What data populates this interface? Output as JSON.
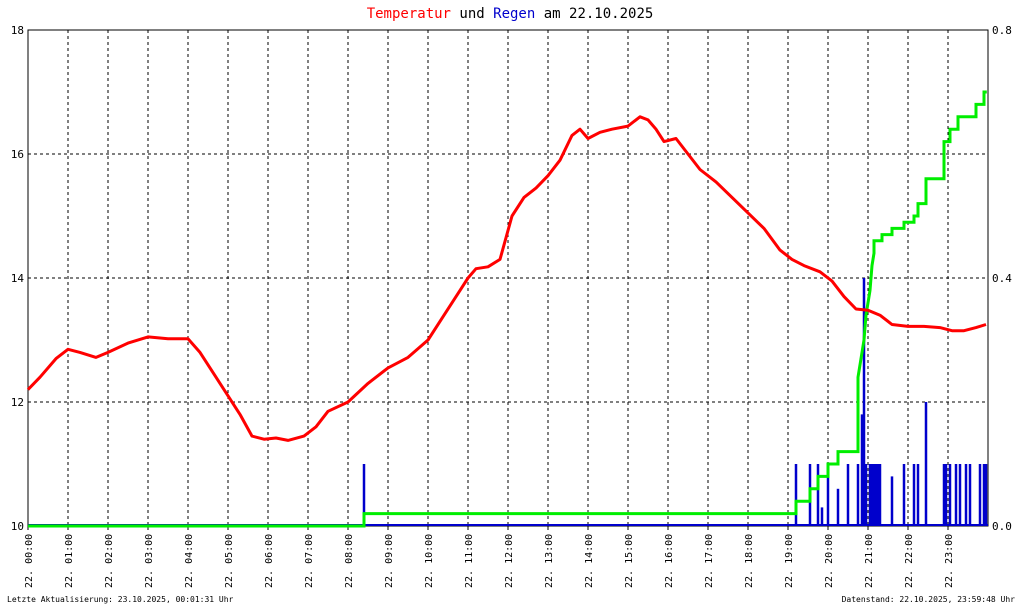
{
  "title": {
    "part1": "Temperatur",
    "part2": " und ",
    "part3": "Regen",
    "part4": " am 22.10.2025",
    "colors": {
      "part1": "#ff0000",
      "part2": "#000000",
      "part3": "#0000cc",
      "part4": "#000000"
    }
  },
  "footer": {
    "left": "Letzte Aktualisierung: 23.10.2025, 00:01:31 Uhr",
    "right": "Datenstand: 22.10.2025, 23:59:48 Uhr"
  },
  "chart_data": {
    "type": "line",
    "title": "Temperatur und Regen am 22.10.2025",
    "x_tick_labels": [
      "22. 00:00",
      "22. 01:00",
      "22. 02:00",
      "22. 03:00",
      "22. 04:00",
      "22. 05:00",
      "22. 06:00",
      "22. 07:00",
      "22. 08:00",
      "22. 09:00",
      "22. 10:00",
      "22. 11:00",
      "22. 12:00",
      "22. 13:00",
      "22. 14:00",
      "22. 15:00",
      "22. 16:00",
      "22. 17:00",
      "22. 18:00",
      "22. 19:00",
      "22. 20:00",
      "22. 21:00",
      "22. 22:00",
      "22. 23:00"
    ],
    "xlim_hours": [
      0,
      24
    ],
    "y_left": {
      "ticks": [
        "10",
        "12",
        "14",
        "16",
        "18"
      ],
      "ylim": [
        10,
        18
      ]
    },
    "y_right": {
      "ticks": [
        "0.0",
        "0.4",
        "0.8"
      ],
      "ylim": [
        0,
        0.8
      ]
    },
    "grid": true,
    "colors": {
      "temperature": "#ff0000",
      "rain": "#0000cc",
      "rain_cumulative": "#00ee00",
      "axis": "#000000",
      "grid": "#000000"
    },
    "series": [
      {
        "axis": "left",
        "style": "line",
        "hours": [
          0,
          0.3,
          0.7,
          1.0,
          1.3,
          1.7,
          2.0,
          2.5,
          3.0,
          3.5,
          4.0,
          4.3,
          4.7,
          5.0,
          5.3,
          5.6,
          5.9,
          6.2,
          6.5,
          6.9,
          7.2,
          7.5,
          8.0,
          8.5,
          9.0,
          9.5,
          10.0,
          10.4,
          10.8,
          11.0,
          11.2,
          11.5,
          11.8,
          12.1,
          12.4,
          12.7,
          13.0,
          13.3,
          13.6,
          13.8,
          14.0,
          14.3,
          14.6,
          15.0,
          15.3,
          15.5,
          15.7,
          15.9,
          16.2,
          16.5,
          16.8,
          17.2,
          17.6,
          18.0,
          18.4,
          18.8,
          19.1,
          19.4,
          19.8,
          20.1,
          20.4,
          20.7,
          21.0,
          21.3,
          21.6,
          22.0,
          22.4,
          22.8,
          23.1,
          23.4,
          23.7,
          23.95
        ],
        "values": [
          12.2,
          12.4,
          12.7,
          12.85,
          12.8,
          12.72,
          12.8,
          12.95,
          13.05,
          13.02,
          13.02,
          12.8,
          12.4,
          12.1,
          11.8,
          11.45,
          11.4,
          11.42,
          11.38,
          11.45,
          11.6,
          11.85,
          12.0,
          12.3,
          12.55,
          12.72,
          13.0,
          13.4,
          13.8,
          14.0,
          14.15,
          14.18,
          14.3,
          15.0,
          15.3,
          15.45,
          15.65,
          15.9,
          16.3,
          16.4,
          16.25,
          16.35,
          16.4,
          16.45,
          16.6,
          16.55,
          16.4,
          16.2,
          16.25,
          16.0,
          15.75,
          15.55,
          15.3,
          15.05,
          14.8,
          14.45,
          14.3,
          14.2,
          14.1,
          13.95,
          13.7,
          13.5,
          13.48,
          13.4,
          13.25,
          13.22,
          13.22,
          13.2,
          13.15,
          13.15,
          13.2,
          13.25
        ]
      },
      {
        "axis": "right",
        "style": "step",
        "hours": [
          0,
          8.4,
          8.4,
          19.2,
          19.2,
          19.55,
          19.55,
          19.75,
          19.75,
          20.0,
          20.0,
          20.25,
          20.25,
          20.75,
          20.75,
          20.9,
          20.95,
          21.05,
          21.1,
          21.15,
          21.15,
          21.35,
          21.35,
          21.6,
          21.6,
          21.9,
          21.9,
          22.15,
          22.15,
          22.25,
          22.25,
          22.45,
          22.45,
          22.9,
          22.9,
          23.05,
          23.05,
          23.25,
          23.25,
          23.5,
          23.5,
          23.7,
          23.7,
          23.9,
          23.9,
          23.97
        ],
        "values": [
          0.0,
          0.0,
          0.02,
          0.02,
          0.04,
          0.04,
          0.06,
          0.06,
          0.08,
          0.08,
          0.1,
          0.1,
          0.12,
          0.12,
          0.24,
          0.3,
          0.34,
          0.38,
          0.42,
          0.44,
          0.46,
          0.46,
          0.47,
          0.47,
          0.48,
          0.48,
          0.49,
          0.49,
          0.5,
          0.5,
          0.52,
          0.52,
          0.56,
          0.56,
          0.62,
          0.62,
          0.64,
          0.64,
          0.66,
          0.66,
          0.66,
          0.66,
          0.68,
          0.68,
          0.7,
          0.7
        ]
      },
      {
        "axis": "right",
        "style": "bars",
        "hours": [
          8.4,
          19.2,
          19.55,
          19.75,
          19.85,
          20.0,
          20.25,
          20.5,
          20.75,
          20.85,
          20.9,
          20.95,
          21.05,
          21.1,
          21.15,
          21.2,
          21.25,
          21.3,
          21.6,
          21.9,
          22.15,
          22.25,
          22.45,
          22.9,
          22.95,
          23.05,
          23.2,
          23.3,
          23.45,
          23.55,
          23.8,
          23.9,
          23.95
        ],
        "values": [
          0.1,
          0.1,
          0.1,
          0.1,
          0.03,
          0.1,
          0.06,
          0.1,
          0.1,
          0.18,
          0.4,
          0.1,
          0.1,
          0.1,
          0.1,
          0.1,
          0.1,
          0.1,
          0.08,
          0.1,
          0.1,
          0.1,
          0.2,
          0.1,
          0.1,
          0.1,
          0.1,
          0.1,
          0.1,
          0.1,
          0.1,
          0.1,
          0.1
        ]
      }
    ]
  }
}
